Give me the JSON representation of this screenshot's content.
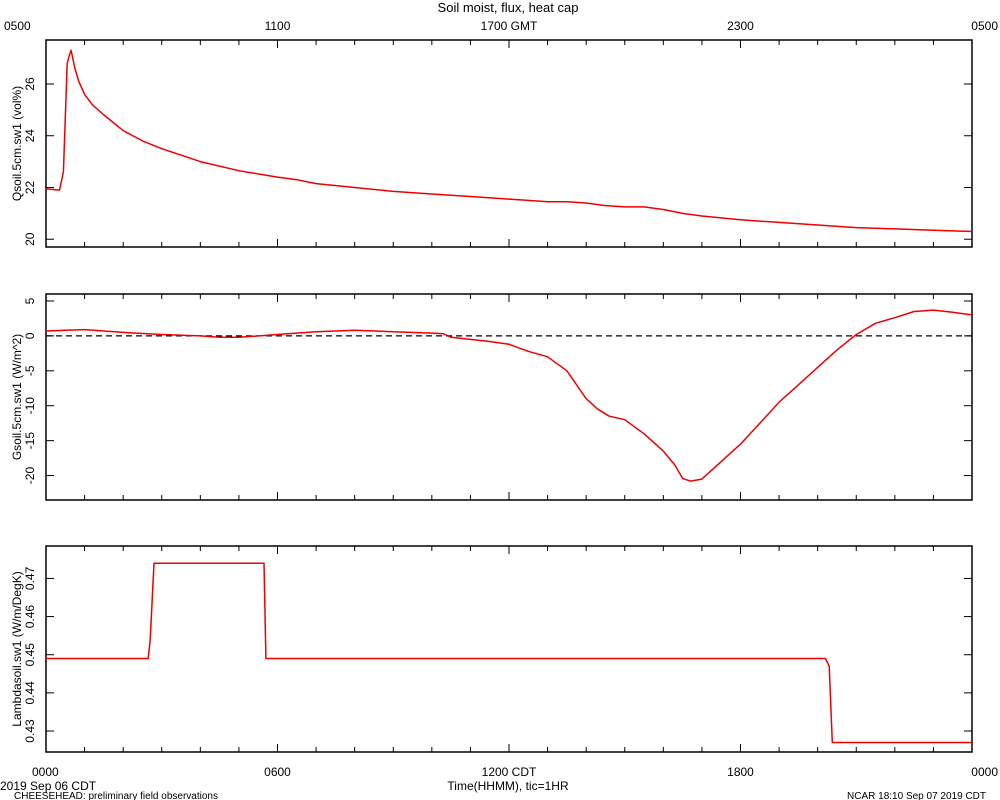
{
  "title": "Soil moist, flux, heat cap",
  "top_axis": {
    "ticks": [
      {
        "hour": 0,
        "label": "0500"
      },
      {
        "hour": 6,
        "label": "1100"
      },
      {
        "hour": 12,
        "label": "1700 GMT"
      },
      {
        "hour": 18,
        "label": "2300"
      },
      {
        "hour": 24,
        "label": "0500"
      }
    ]
  },
  "bottom_axis": {
    "ticks": [
      {
        "hour": 0,
        "label": "0000"
      },
      {
        "hour": 6,
        "label": "0600"
      },
      {
        "hour": 12,
        "label": "1200 CDT"
      },
      {
        "hour": 18,
        "label": "1800"
      },
      {
        "hour": 24,
        "label": "0000"
      }
    ],
    "xlabel": "Time(HHMM), tic=1HR"
  },
  "footer": {
    "date": "2019 Sep 06 CDT",
    "project": "CHEESEHEAD: preliminary field observations",
    "stamp": "NCAR 18:10 Sep 07 2019 CDT"
  },
  "colors": {
    "line": "#ee0000",
    "axis": "#000000",
    "zero_line": "#000000"
  },
  "chart_data": [
    {
      "type": "line",
      "ylabel": "Qsoil.5cm.sw1 (vol%)",
      "xlim": [
        0,
        24
      ],
      "ylim": [
        19.7,
        27.7
      ],
      "yticks": [
        20,
        22,
        24,
        26
      ],
      "series": [
        {
          "x": [
            0,
            0.35,
            0.45,
            0.55,
            0.6,
            0.65,
            0.75,
            0.85,
            1.0,
            1.2,
            1.5,
            2.0,
            2.5,
            3.0,
            3.5,
            4.0,
            5.0,
            6.0,
            6.5,
            7.0,
            8.0,
            9.0,
            10.0,
            11.0,
            12.0,
            12.5,
            13.0,
            13.5,
            14.0,
            14.5,
            15.0,
            15.5,
            16.0,
            16.5,
            17.0,
            18.0,
            19.0,
            20.0,
            21.0,
            22.0,
            23.0,
            24.0
          ],
          "y": [
            21.95,
            21.9,
            22.6,
            26.8,
            27.1,
            27.3,
            26.6,
            26.1,
            25.6,
            25.2,
            24.8,
            24.2,
            23.8,
            23.5,
            23.25,
            23.0,
            22.65,
            22.4,
            22.3,
            22.15,
            22.0,
            21.85,
            21.75,
            21.65,
            21.55,
            21.5,
            21.45,
            21.45,
            21.4,
            21.3,
            21.25,
            21.25,
            21.15,
            21.0,
            20.9,
            20.75,
            20.65,
            20.55,
            20.45,
            20.4,
            20.35,
            20.3
          ]
        }
      ]
    },
    {
      "type": "line",
      "ylabel": "Gsoil.5cm.sw1 (W/m^2)",
      "xlim": [
        0,
        24
      ],
      "ylim": [
        -23.5,
        6
      ],
      "yticks": [
        5,
        0,
        -5,
        -10,
        -15,
        -20
      ],
      "zero_line": true,
      "series": [
        {
          "x": [
            0,
            0.5,
            1.0,
            1.5,
            2.0,
            3.0,
            4.0,
            4.5,
            5.0,
            6.0,
            7.0,
            8.0,
            9.0,
            10.0,
            10.3,
            10.5,
            11.0,
            11.5,
            12.0,
            12.5,
            13.0,
            13.5,
            14.0,
            14.3,
            14.6,
            15.0,
            15.5,
            16.0,
            16.3,
            16.5,
            16.7,
            17.0,
            17.5,
            18.0,
            18.5,
            19.0,
            19.5,
            20.0,
            20.5,
            21.0,
            21.5,
            22.0,
            22.5,
            23.0,
            23.5,
            24.0
          ],
          "y": [
            0.7,
            0.8,
            0.9,
            0.7,
            0.5,
            0.2,
            0.0,
            -0.2,
            -0.2,
            0.2,
            0.6,
            0.8,
            0.6,
            0.4,
            0.3,
            -0.2,
            -0.5,
            -0.8,
            -1.2,
            -2.2,
            -3.0,
            -5.0,
            -9.0,
            -10.5,
            -11.5,
            -12.0,
            -14.0,
            -16.5,
            -18.5,
            -20.4,
            -20.8,
            -20.5,
            -18.0,
            -15.5,
            -12.5,
            -9.5,
            -7.0,
            -4.5,
            -2.0,
            0.2,
            1.8,
            2.6,
            3.5,
            3.7,
            3.4,
            3.0
          ]
        }
      ]
    },
    {
      "type": "line",
      "ylabel": "Lambdasoil.sw1 (W/m/DegK)",
      "xlim": [
        0,
        24
      ],
      "ylim": [
        0.4245,
        0.4785
      ],
      "yticks": [
        0.43,
        0.44,
        0.45,
        0.46,
        0.47
      ],
      "series": [
        {
          "x": [
            0,
            2.65,
            2.7,
            2.8,
            5.65,
            5.7,
            5.75,
            20.2,
            20.3,
            20.38,
            24.0
          ],
          "y": [
            0.449,
            0.449,
            0.454,
            0.474,
            0.474,
            0.449,
            0.449,
            0.449,
            0.447,
            0.427,
            0.427
          ]
        }
      ]
    }
  ]
}
